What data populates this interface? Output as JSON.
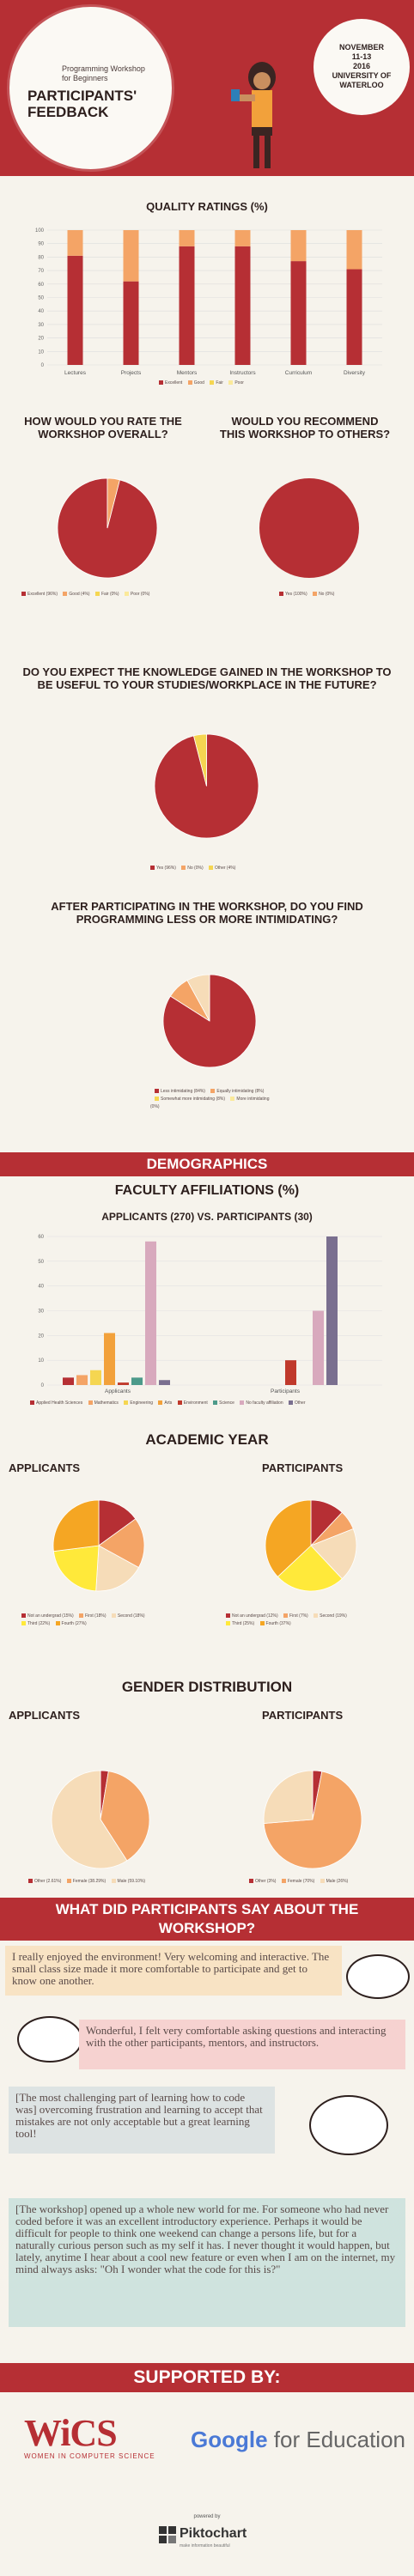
{
  "header": {
    "small_title": "Programming Workshop for Beginners",
    "title": "PARTICIPANTS' FEEDBACK",
    "date_line1": "NOVEMBER",
    "date_line2": "11-13",
    "date_line3": "2016",
    "place": "UNIVERSITY OF WATERLOO"
  },
  "quality": {
    "title": "QUALITY RATINGS (%)",
    "legend": [
      "Excellent",
      "Good",
      "Fair",
      "Poor"
    ]
  },
  "q1": {
    "title": "HOW WOULD YOU RATE THE WORKSHOP OVERALL?",
    "legend": [
      "Excellent (96%)",
      "Good (4%)",
      "Fair (0%)",
      "Poor (0%)"
    ]
  },
  "q2": {
    "title": "WOULD YOU RECOMMEND THIS WORKSHOP TO OTHERS?",
    "legend": [
      "Yes (100%)",
      "No (0%)"
    ]
  },
  "q3": {
    "title": "DO YOU EXPECT THE KNOWLEDGE GAINED IN THE WORKSHOP TO BE USEFUL TO YOUR STUDIES/WORKPLACE IN THE FUTURE?",
    "legend": [
      "Yes (96%)",
      "No (0%)",
      "Other (4%)"
    ]
  },
  "q4": {
    "title": "AFTER PARTICIPATING IN THE WORKSHOP, DO YOU FIND PROGRAMMING LESS OR MORE INTIMIDATING?",
    "legend": [
      "Less intimidating (84%)",
      "Equally intimidating (8%)",
      "Somewhat more intimidating (8%)",
      "More intimidating (0%)"
    ]
  },
  "demographics": {
    "band": "DEMOGRAPHICS"
  },
  "faculty": {
    "title": "FACULTY AFFILIATIONS (%)",
    "subtitle": "APPLICANTS (270) VS. PARTICIPANTS (30)",
    "legend": [
      "Applied Health Sciences",
      "Mathematics",
      "Engineering",
      "Arts",
      "Environment",
      "Science",
      "No faculty affiliation",
      "Other"
    ]
  },
  "academic": {
    "title": "ACADEMIC YEAR",
    "applicants": "APPLICANTS",
    "participants": "PARTICIPANTS",
    "legend_a": [
      "Not an undergrad (15%)",
      "First (18%)",
      "Second (18%)",
      "Third (22%)",
      "Fourth (27%)"
    ],
    "legend_p": [
      "Not an undergrad (12%)",
      "First (7%)",
      "Second (19%)",
      "Third (25%)",
      "Fourth (37%)"
    ]
  },
  "gender": {
    "title": "GENDER DISTRIBUTION",
    "applicants": "APPLICANTS",
    "participants": "PARTICIPANTS",
    "legend_a": [
      "Other (2.61%)",
      "Female (38.29%)",
      "Male (59.10%)"
    ],
    "legend_p": [
      "Other (3%)",
      "Female (70%)",
      "Male (26%)"
    ]
  },
  "say": {
    "band": "WHAT DID PARTICIPANTS SAY ABOUT THE WORKSHOP?"
  },
  "quotes": [
    "I really enjoyed the environment! Very welcoming and interactive. The small class size made it more comfortable to participate and get to know one another.",
    "Wonderful, I felt very comfortable asking questions and interacting with the other participants, mentors, and instructors.",
    "[The most challenging part of learning how to code was] overcoming frustration and learning to accept that mistakes are not only acceptable but a great learning tool!",
    "[The workshop] opened up a whole new world for me. For someone who had never coded before it was an excellent introductory experience. Perhaps it would be difficult for people to think one weekend can change a persons life, but for a naturally curious person such as my self it has. I never thought it would happen, but lately, anytime I hear about a cool new feature or even when I am on the internet, my mind always asks: \"Oh I wonder what the code for this is?\""
  ],
  "supported": {
    "band": "SUPPORTED BY:",
    "wics": "WiCS",
    "wics_sub": "WOMEN IN COMPUTER SCIENCE",
    "google": "Google",
    "google_sub": "for Education",
    "powered": "powered by",
    "piktochart": "Piktochart",
    "piktochart_sub": "make information beautiful"
  },
  "colors": {
    "red": "#b62f34",
    "orange": "#f4a466",
    "yellow": "#f5d651",
    "pink": "#d8a9bd"
  },
  "chart_data": [
    {
      "type": "bar",
      "title": "QUALITY RATINGS (%)",
      "categories": [
        "Lectures",
        "Projects",
        "Mentors",
        "Instructors",
        "Curriculum",
        "Diversity"
      ],
      "series": [
        {
          "name": "Excellent",
          "values": [
            81,
            62,
            88,
            88,
            77,
            71
          ]
        },
        {
          "name": "Good",
          "values": [
            19,
            38,
            12,
            12,
            23,
            29
          ]
        },
        {
          "name": "Fair",
          "values": [
            0,
            0,
            0,
            0,
            0,
            0
          ]
        },
        {
          "name": "Poor",
          "values": [
            0,
            0,
            0,
            0,
            0,
            0
          ]
        }
      ],
      "ylim": [
        0,
        100
      ],
      "yticks": [
        0,
        10,
        20,
        30,
        40,
        50,
        60,
        70,
        80,
        90,
        100
      ],
      "stacked": true
    },
    {
      "type": "pie",
      "title": "HOW WOULD YOU RATE THE WORKSHOP OVERALL?",
      "labels": [
        "Excellent",
        "Good",
        "Fair",
        "Poor"
      ],
      "values": [
        96,
        4,
        0,
        0
      ]
    },
    {
      "type": "pie",
      "title": "WOULD YOU RECOMMEND THIS WORKSHOP TO OTHERS?",
      "labels": [
        "Yes",
        "No"
      ],
      "values": [
        100,
        0
      ]
    },
    {
      "type": "pie",
      "title": "DO YOU EXPECT THE KNOWLEDGE GAINED IN THE WORKSHOP TO BE USEFUL TO YOUR STUDIES/WORKPLACE IN THE FUTURE?",
      "labels": [
        "Yes",
        "No",
        "Other"
      ],
      "values": [
        96,
        0,
        4
      ]
    },
    {
      "type": "pie",
      "title": "AFTER PARTICIPATING IN THE WORKSHOP, DO YOU FIND PROGRAMMING LESS OR MORE INTIMIDATING?",
      "labels": [
        "Less intimidating",
        "Equally intimidating",
        "Somewhat more intimidating",
        "More intimidating"
      ],
      "values": [
        84,
        8,
        8,
        0
      ]
    },
    {
      "type": "bar",
      "title": "FACULTY AFFILIATIONS (%)",
      "subtitle": "APPLICANTS (270) VS. PARTICIPANTS (30)",
      "categories": [
        "Applicants",
        "Participants"
      ],
      "series": [
        {
          "name": "Applied Health Sciences",
          "values": [
            3,
            0
          ]
        },
        {
          "name": "Mathematics",
          "values": [
            4,
            0
          ]
        },
        {
          "name": "Engineering",
          "values": [
            6,
            0
          ]
        },
        {
          "name": "Arts",
          "values": [
            21,
            0
          ]
        },
        {
          "name": "Environment",
          "values": [
            1,
            10
          ]
        },
        {
          "name": "Science",
          "values": [
            3,
            0
          ]
        },
        {
          "name": "No faculty affiliation",
          "values": [
            58,
            30
          ]
        },
        {
          "name": "Other",
          "values": [
            2,
            60
          ]
        }
      ],
      "ylim": [
        0,
        60
      ],
      "yticks": [
        0,
        10,
        20,
        30,
        40,
        50,
        60
      ]
    },
    {
      "type": "pie",
      "title": "ACADEMIC YEAR - APPLICANTS",
      "labels": [
        "Not an undergrad",
        "First",
        "Second",
        "Third",
        "Fourth"
      ],
      "values": [
        15,
        18,
        18,
        22,
        27
      ]
    },
    {
      "type": "pie",
      "title": "ACADEMIC YEAR - PARTICIPANTS",
      "labels": [
        "Not an undergrad",
        "First",
        "Second",
        "Third",
        "Fourth"
      ],
      "values": [
        12,
        7,
        19,
        25,
        37
      ]
    },
    {
      "type": "pie",
      "title": "GENDER DISTRIBUTION - APPLICANTS",
      "labels": [
        "Other",
        "Female",
        "Male"
      ],
      "values": [
        2.61,
        38.29,
        59.1
      ]
    },
    {
      "type": "pie",
      "title": "GENDER DISTRIBUTION - PARTICIPANTS",
      "labels": [
        "Other",
        "Female",
        "Male"
      ],
      "values": [
        3,
        70,
        26
      ]
    }
  ]
}
